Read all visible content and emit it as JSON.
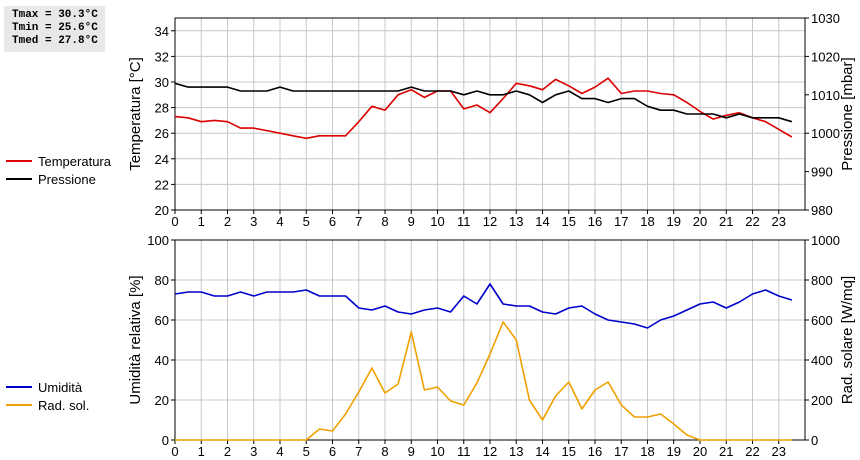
{
  "stats": {
    "tmax": "Tmax = 30.3°C",
    "tmin": "Tmin = 25.6°C",
    "tmed": "Tmed = 27.8°C"
  },
  "chart_data": [
    {
      "type": "line",
      "x_ticks": [
        "0",
        "1",
        "2",
        "3",
        "4",
        "5",
        "6",
        "7",
        "8",
        "9",
        "10",
        "11",
        "12",
        "13",
        "14",
        "15",
        "16",
        "17",
        "18",
        "19",
        "20",
        "21",
        "22",
        "23"
      ],
      "xlim": [
        0,
        24
      ],
      "ylabel": "Temperatura [°C]",
      "ylabel2": "Pressione [mbar]",
      "ylim": [
        20,
        35
      ],
      "y_ticks": [
        "20",
        "22",
        "24",
        "26",
        "28",
        "30",
        "32",
        "34"
      ],
      "y2lim": [
        980,
        1030
      ],
      "y2_ticks": [
        "980",
        "990",
        "1000",
        "1010",
        "1020",
        "1030"
      ],
      "grid": true,
      "legend_position": "left",
      "series": [
        {
          "name": "Temperatura",
          "axis": "left",
          "color": "#dd0000",
          "x": [
            0,
            0.5,
            1,
            1.5,
            2,
            2.5,
            3,
            3.5,
            4,
            4.5,
            5,
            5.5,
            6,
            6.5,
            7,
            7.5,
            8,
            8.5,
            9,
            9.5,
            10,
            10.5,
            11,
            11.5,
            12,
            12.5,
            13,
            13.5,
            14,
            14.5,
            15,
            15.5,
            16,
            16.5,
            17,
            17.5,
            18,
            18.5,
            19,
            19.5,
            20,
            20.5,
            21,
            21.5,
            22,
            22.5,
            23,
            23.5
          ],
          "values": [
            27.3,
            27.2,
            26.9,
            27.0,
            26.9,
            26.4,
            26.4,
            26.2,
            26.0,
            25.8,
            25.6,
            25.8,
            25.8,
            25.8,
            26.9,
            28.1,
            27.8,
            29.0,
            29.4,
            28.8,
            29.3,
            29.3,
            27.9,
            28.2,
            27.6,
            28.7,
            29.9,
            29.7,
            29.4,
            30.2,
            29.7,
            29.1,
            29.6,
            30.3,
            29.1,
            29.3,
            29.3,
            29.1,
            29.0,
            28.4,
            27.7,
            27.1,
            27.4,
            27.6,
            27.2,
            26.9,
            26.3,
            25.7
          ]
        },
        {
          "name": "Pressione",
          "axis": "right",
          "color": "#000000",
          "x": [
            0,
            0.5,
            1,
            1.5,
            2,
            2.5,
            3,
            3.5,
            4,
            4.5,
            5,
            5.5,
            6,
            6.5,
            7,
            7.5,
            8,
            8.5,
            9,
            9.5,
            10,
            10.5,
            11,
            11.5,
            12,
            12.5,
            13,
            13.5,
            14,
            14.5,
            15,
            15.5,
            16,
            16.5,
            17,
            17.5,
            18,
            18.5,
            19,
            19.5,
            20,
            20.5,
            21,
            21.5,
            22,
            22.5,
            23,
            23.5
          ],
          "values": [
            1013,
            1012,
            1012,
            1012,
            1012,
            1011,
            1011,
            1011,
            1012,
            1011,
            1011,
            1011,
            1011,
            1011,
            1011,
            1011,
            1011,
            1011,
            1012,
            1011,
            1011,
            1011,
            1010,
            1011,
            1010,
            1010,
            1011,
            1010,
            1008,
            1010,
            1011,
            1009,
            1009,
            1008,
            1009,
            1009,
            1007,
            1006,
            1006,
            1005,
            1005,
            1005,
            1004,
            1005,
            1004,
            1004,
            1004,
            1003
          ]
        }
      ]
    },
    {
      "type": "line",
      "x_ticks": [
        "0",
        "1",
        "2",
        "3",
        "4",
        "5",
        "6",
        "7",
        "8",
        "9",
        "10",
        "11",
        "12",
        "13",
        "14",
        "15",
        "16",
        "17",
        "18",
        "19",
        "20",
        "21",
        "22",
        "23"
      ],
      "xlim": [
        0,
        24
      ],
      "ylabel": "Umidità relativa [%]",
      "ylabel2": "Rad. solare [W/mq]",
      "ylim": [
        0,
        100
      ],
      "y_ticks": [
        "0",
        "20",
        "40",
        "60",
        "80",
        "100"
      ],
      "y2lim": [
        0,
        1000
      ],
      "y2_ticks": [
        "0",
        "200",
        "400",
        "600",
        "800",
        "1000"
      ],
      "grid": true,
      "legend_position": "left",
      "series": [
        {
          "name": "Umidità",
          "axis": "left",
          "color": "#0000cc",
          "x": [
            0,
            0.5,
            1,
            1.5,
            2,
            2.5,
            3,
            3.5,
            4,
            4.5,
            5,
            5.5,
            6,
            6.5,
            7,
            7.5,
            8,
            8.5,
            9,
            9.5,
            10,
            10.5,
            11,
            11.5,
            12,
            12.5,
            13,
            13.5,
            14,
            14.5,
            15,
            15.5,
            16,
            16.5,
            17,
            17.5,
            18,
            18.5,
            19,
            19.5,
            20,
            20.5,
            21,
            21.5,
            22,
            22.5,
            23,
            23.5
          ],
          "values": [
            73,
            74,
            74,
            72,
            72,
            74,
            72,
            74,
            74,
            74,
            75,
            72,
            72,
            72,
            66,
            65,
            67,
            64,
            63,
            65,
            66,
            64,
            72,
            68,
            78,
            68,
            67,
            67,
            64,
            63,
            66,
            67,
            63,
            60,
            59,
            58,
            56,
            60,
            62,
            65,
            68,
            69,
            66,
            69,
            73,
            75,
            72,
            70
          ]
        },
        {
          "name": "Rad. sol.",
          "axis": "right",
          "color": "#f0a000",
          "x": [
            0,
            0.5,
            1,
            1.5,
            2,
            2.5,
            3,
            3.5,
            4,
            4.5,
            5,
            5.5,
            6,
            6.5,
            7,
            7.5,
            8,
            8.5,
            9,
            9.5,
            10,
            10.5,
            11,
            11.5,
            12,
            12.5,
            13,
            13.5,
            14,
            14.5,
            15,
            15.5,
            16,
            16.5,
            17,
            17.5,
            18,
            18.5,
            19,
            19.5,
            20,
            20.5,
            21,
            21.5,
            22,
            22.5,
            23,
            23.5
          ],
          "values": [
            0,
            0,
            0,
            0,
            0,
            0,
            0,
            0,
            0,
            0,
            0,
            55,
            45,
            130,
            240,
            360,
            235,
            280,
            540,
            250,
            265,
            195,
            175,
            285,
            430,
            590,
            500,
            200,
            100,
            220,
            290,
            155,
            250,
            290,
            175,
            115,
            115,
            130,
            80,
            25,
            0,
            0,
            0,
            0,
            0,
            0,
            0,
            0
          ]
        }
      ]
    }
  ]
}
